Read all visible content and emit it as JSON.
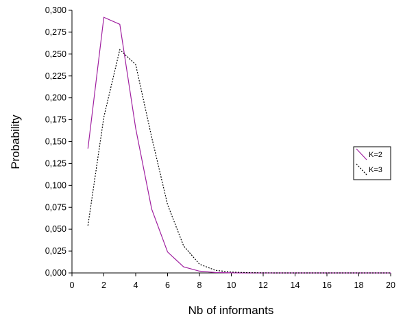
{
  "chart_data": {
    "type": "line",
    "xlabel": "Nb of informants",
    "ylabel": "Probability",
    "xlim": [
      0,
      20
    ],
    "ylim": [
      0,
      0.3
    ],
    "x_ticks": [
      "0",
      "2",
      "4",
      "6",
      "8",
      "10",
      "12",
      "14",
      "16",
      "18",
      "20"
    ],
    "y_ticks": [
      "0,000",
      "0,025",
      "0,050",
      "0,075",
      "0,100",
      "0,125",
      "0,150",
      "0,175",
      "0,200",
      "0,225",
      "0,250",
      "0,275",
      "0,300"
    ],
    "grid": false,
    "legend_position": "right",
    "series": [
      {
        "name": "K=2",
        "color": "#a020a0",
        "style": "solid",
        "x": [
          1,
          2,
          3,
          4,
          5,
          6,
          7,
          8,
          9,
          10,
          11,
          12,
          13,
          14,
          15,
          16,
          17,
          18,
          19,
          20
        ],
        "values": [
          0.142,
          0.292,
          0.284,
          0.165,
          0.073,
          0.024,
          0.007,
          0.002,
          0.0005,
          0.0001,
          0,
          0,
          0,
          0,
          0,
          0,
          0,
          0,
          0,
          0
        ]
      },
      {
        "name": "K=3",
        "color": "#000000",
        "style": "dashed",
        "x": [
          1,
          2,
          3,
          4,
          5,
          6,
          7,
          8,
          9,
          10,
          11,
          12,
          13,
          14,
          15,
          16,
          17,
          18,
          19,
          20
        ],
        "values": [
          0.054,
          0.178,
          0.255,
          0.238,
          0.155,
          0.078,
          0.031,
          0.01,
          0.003,
          0.001,
          0.0003,
          0.0001,
          0,
          0,
          0,
          0,
          0,
          0,
          0,
          0
        ]
      }
    ]
  }
}
